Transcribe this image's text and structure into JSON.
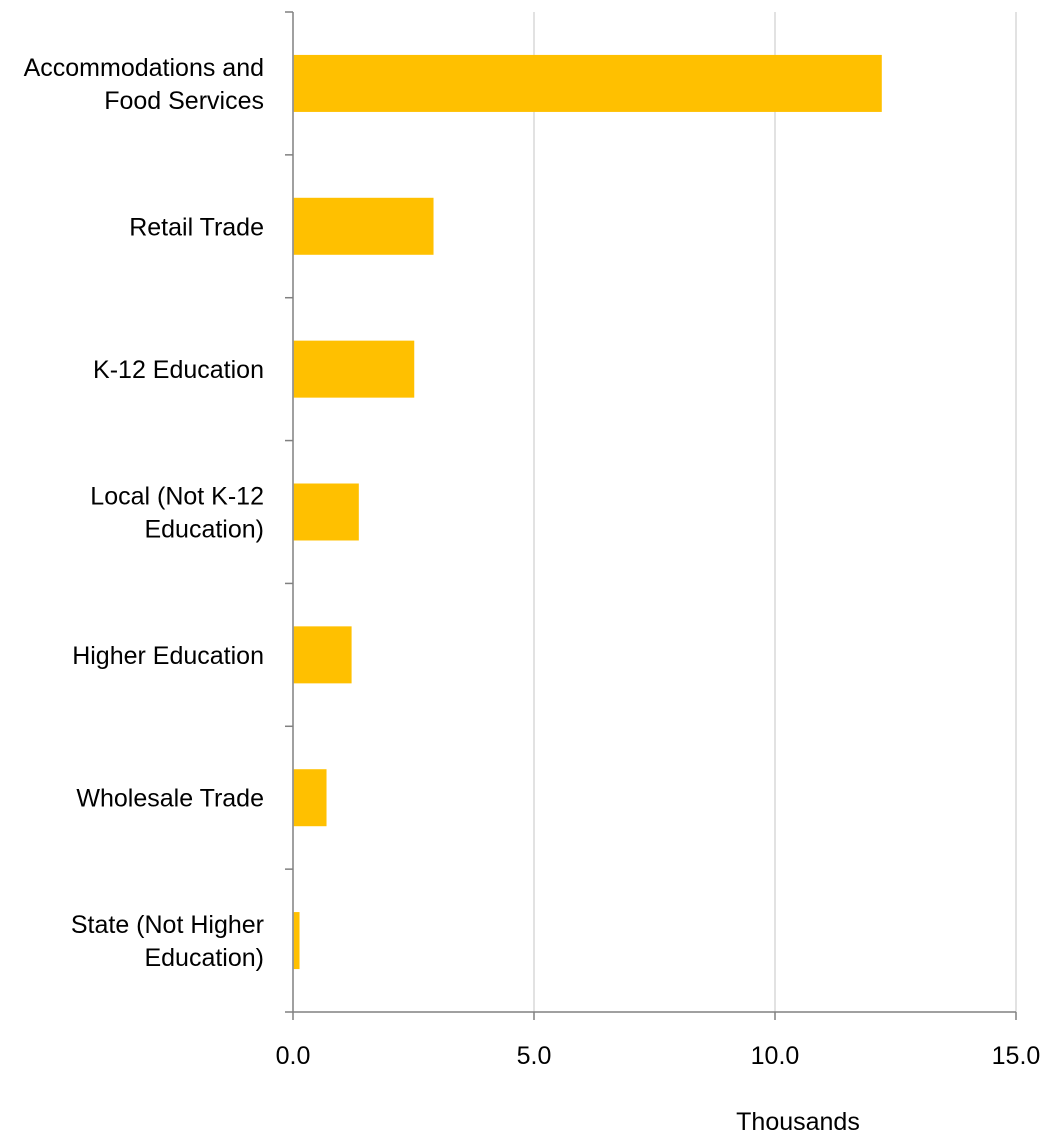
{
  "chart_data": {
    "type": "bar",
    "orientation": "horizontal",
    "categories": [
      [
        "Accommodations and",
        "Food Services"
      ],
      [
        "Retail Trade"
      ],
      [
        "K-12 Education"
      ],
      [
        "Local (Not K-12",
        "Education)"
      ],
      [
        "Higher Education"
      ],
      [
        "Wholesale Trade"
      ],
      [
        "State (Not Higher",
        "Education)"
      ]
    ],
    "values": [
      12.2,
      2.9,
      2.5,
      1.35,
      1.2,
      0.68,
      0.12
    ],
    "xlim": [
      0,
      15
    ],
    "x_ticks": [
      0,
      5,
      10,
      15
    ],
    "x_tick_labels": [
      "0.0",
      "5.0",
      "10.0",
      "15.0"
    ],
    "x_unit_label": "Thousands",
    "grid": "vertical",
    "legend": "none",
    "colors": {
      "bar": "#FFC000",
      "grid": "#D9D9D9",
      "axis": "#808080"
    }
  }
}
